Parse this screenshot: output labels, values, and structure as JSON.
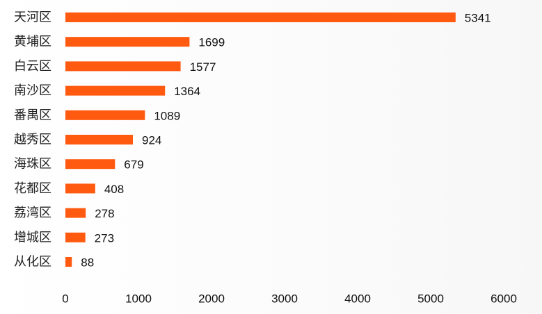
{
  "chart_data": {
    "type": "bar",
    "orientation": "horizontal",
    "categories": [
      "天河区",
      "黄埔区",
      "白云区",
      "南沙区",
      "番禺区",
      "越秀区",
      "海珠区",
      "花都区",
      "荔湾区",
      "增城区",
      "从化区"
    ],
    "values": [
      5341,
      1699,
      1577,
      1364,
      1089,
      924,
      679,
      408,
      278,
      273,
      88
    ],
    "value_labels": [
      "5341",
      "1699",
      "1577",
      "1364",
      "1089",
      "924",
      "679",
      "408",
      "278",
      "273",
      "88"
    ],
    "xlim": [
      0,
      6000
    ],
    "x_ticks": [
      0,
      1000,
      2000,
      3000,
      4000,
      5000,
      6000
    ],
    "x_tick_labels": [
      "0",
      "1000",
      "2000",
      "3000",
      "4000",
      "5000",
      "6000"
    ],
    "bar_color": "#FF5A0F",
    "grid": false,
    "legend": false
  }
}
